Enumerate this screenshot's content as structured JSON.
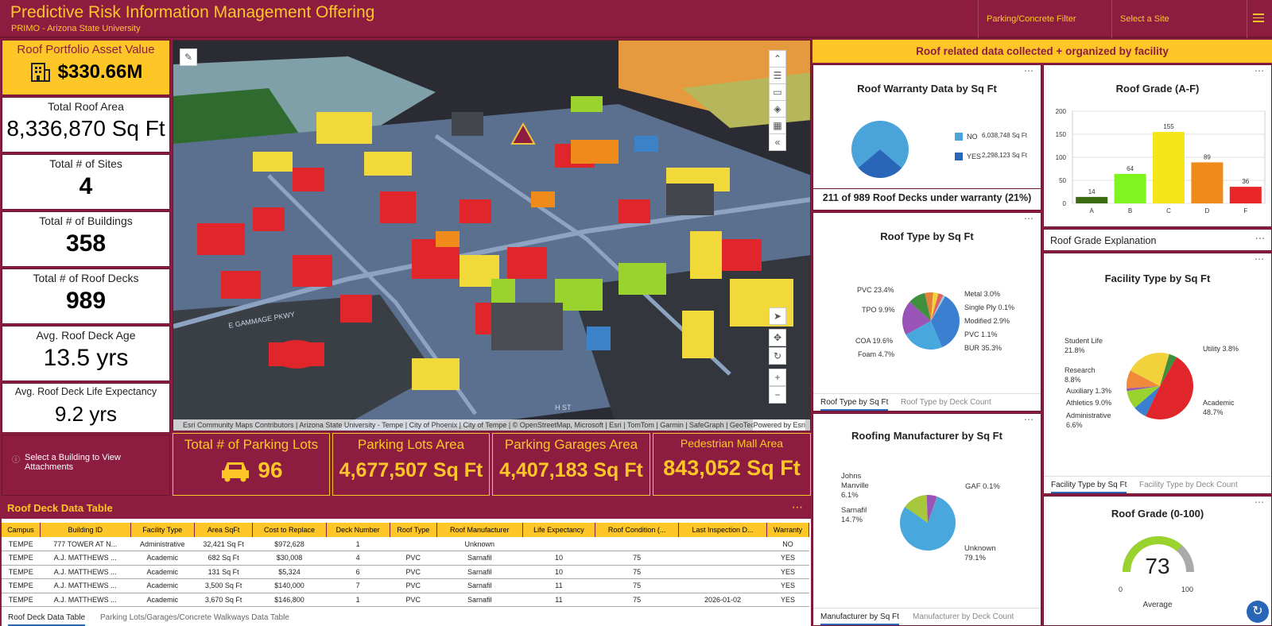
{
  "header": {
    "title": "Predictive Risk Information Management Offering",
    "subtitle": "PRIMO - Arizona State University",
    "buttons": [
      "Parking/Concrete Filter",
      "Select a Site"
    ]
  },
  "kpis": [
    {
      "label": "Roof Portfolio Asset Value",
      "value": "$330.66M"
    },
    {
      "label": "Total Roof Area",
      "value": "8,336,870 Sq Ft"
    },
    {
      "label": "Total # of Sites",
      "value": "4"
    },
    {
      "label": "Total # of Buildings",
      "value": "358"
    },
    {
      "label": "Total # of Roof Decks",
      "value": "989"
    },
    {
      "label": "Avg. Roof Deck Age",
      "value": "13.5 yrs"
    },
    {
      "label": "Avg. Roof Deck Life Expectancy",
      "value": "9.2 yrs"
    }
  ],
  "attachments_hint": "Select a Building to View Attachments",
  "map": {
    "attribution": "Esri Community Maps Contributors | Arizona State University - Tempe | City of Phoenix | City of Tempe | © OpenStreetMap, Microsoft | Esri | TomTom | Garmin | SafeGraph | GeoTechnolo...",
    "powered": "Powered by Esri",
    "street_label": "E GAMMAGE PKWY",
    "street_label2": "H ST"
  },
  "bottom_kpis": [
    {
      "label": "Total # of Parking Lots",
      "value": "96"
    },
    {
      "label": "Parking Lots Area",
      "value": "4,677,507 Sq Ft"
    },
    {
      "label": "Parking Garages Area",
      "value": "4,407,183 Sq Ft"
    },
    {
      "label": "Pedestrian Mall Area",
      "value": "843,052 Sq Ft"
    }
  ],
  "table": {
    "title": "Roof Deck Data Table",
    "columns": [
      "Campus",
      "Building ID",
      "Facility Type",
      "Area SqFt",
      "Cost to Replace",
      "Deck Number",
      "Roof Type",
      "Roof Manufacturer",
      "Life Expectancy",
      "Roof Condition (...",
      "Last Inspection D...",
      "Warranty"
    ],
    "rows": [
      [
        "TEMPE",
        "777 TOWER AT N...",
        "Administrative",
        "32,421 Sq Ft",
        "$972,628",
        "1",
        "",
        "Unknown",
        "",
        "",
        "",
        "NO"
      ],
      [
        "TEMPE",
        "A.J. MATTHEWS ...",
        "Academic",
        "682 Sq Ft",
        "$30,008",
        "4",
        "PVC",
        "Sarnafil",
        "10",
        "75",
        "",
        "YES"
      ],
      [
        "TEMPE",
        "A.J. MATTHEWS ...",
        "Academic",
        "131 Sq Ft",
        "$5,324",
        "6",
        "PVC",
        "Sarnafil",
        "10",
        "75",
        "",
        "YES"
      ],
      [
        "TEMPE",
        "A.J. MATTHEWS ...",
        "Academic",
        "3,500 Sq Ft",
        "$140,000",
        "7",
        "PVC",
        "Sarnafil",
        "11",
        "75",
        "",
        "YES"
      ],
      [
        "TEMPE",
        "A.J. MATTHEWS ...",
        "Academic",
        "3,670 Sq Ft",
        "$146,800",
        "1",
        "PVC",
        "Sarnafil",
        "11",
        "75",
        "2026-01-02",
        "YES"
      ]
    ],
    "tabs": [
      "Roof Deck Data Table",
      "Parking Lots/Garages/Concrete Walkways Data Table"
    ]
  },
  "banner": "Roof related data collected + organized by facility",
  "warranty": {
    "title": "Roof Warranty Data by Sq Ft",
    "legend": [
      {
        "name": "NO",
        "value": "6,038,748 Sq Ft",
        "color": "#4aa3d9"
      },
      {
        "name": "YES",
        "value": "2,298,123 Sq Ft",
        "color": "#2a66b8"
      }
    ],
    "note": "211 of 989 Roof Decks under warranty (21%)"
  },
  "roof_type": {
    "title": "Roof Type by Sq Ft",
    "labels": [
      "PVC 23.4%",
      "TPO 9.9%",
      "COA 19.6%",
      "Foam 4.7%",
      "Metal 3.0%",
      "Single Ply 0.1%",
      "Modified 2.9%",
      "PVC 1.1%",
      "BUR 35.3%"
    ],
    "tabs": [
      "Roof Type by Sq Ft",
      "Roof Type by Deck Count"
    ]
  },
  "manufacturer": {
    "title": "Roofing Manufacturer by Sq Ft",
    "labels": [
      "Johns Manville 6.1%",
      "Sarnafil 14.7%",
      "GAF 0.1%",
      "Unknown 79.1%"
    ],
    "label_lines": {
      "jm1": "Johns",
      "jm2": "Manville",
      "jm3": "6.1%",
      "s1": "Sarnafil",
      "s2": "14.7%",
      "gaf": "GAF 0.1%",
      "u1": "Unknown",
      "u2": "79.1%"
    },
    "tabs": [
      "Manufacturer by Sq Ft",
      "Manufacturer by Deck Count"
    ]
  },
  "grade_af": {
    "title": "Roof Grade (A-F)",
    "yticks": [
      "200",
      "150",
      "100",
      "50",
      "0"
    ]
  },
  "grade_explanation": "Roof Grade Explanation",
  "facility": {
    "title": "Facility Type by Sq Ft",
    "label_lines": {
      "sl1": "Student Life",
      "sl2": "21.8%",
      "r1": "Research",
      "r2": "8.8%",
      "aux": "Auxiliary 1.3%",
      "ath": "Athletics 9.0%",
      "adm1": "Administrative",
      "adm2": "6.6%",
      "util": "Utility 3.8%",
      "aca1": "Academic",
      "aca2": "48.7%"
    },
    "tabs": [
      "Facility Type by Sq Ft",
      "Facility Type by Deck Count"
    ]
  },
  "grade_0_100": {
    "title": "Roof Grade (0-100)",
    "value": "73",
    "min": "0",
    "max": "100",
    "caption": "Average"
  },
  "chart_data": [
    {
      "type": "pie",
      "title": "Roof Warranty Data by Sq Ft",
      "categories": [
        "NO",
        "YES"
      ],
      "values": [
        6038748,
        2298123
      ]
    },
    {
      "type": "pie",
      "title": "Roof Type by Sq Ft",
      "categories": [
        "BUR",
        "PVC",
        "COA",
        "TPO",
        "Foam",
        "Metal",
        "Modified",
        "PVC",
        "Single Ply"
      ],
      "values": [
        35.3,
        23.4,
        19.6,
        9.9,
        4.7,
        3.0,
        2.9,
        1.1,
        0.1
      ]
    },
    {
      "type": "pie",
      "title": "Roofing Manufacturer by Sq Ft",
      "categories": [
        "Unknown",
        "Sarnafil",
        "Johns Manville",
        "GAF"
      ],
      "values": [
        79.1,
        14.7,
        6.1,
        0.1
      ]
    },
    {
      "type": "bar",
      "title": "Roof Grade (A-F)",
      "categories": [
        "A",
        "B",
        "C",
        "D",
        "F"
      ],
      "values": [
        14,
        64,
        155,
        89,
        36
      ],
      "ylim": [
        0,
        200
      ],
      "colors": [
        "#3d6b12",
        "#7ef51f",
        "#f5e61a",
        "#f08a1a",
        "#e8262a"
      ]
    },
    {
      "type": "pie",
      "title": "Facility Type by Sq Ft",
      "categories": [
        "Academic",
        "Administrative",
        "Athletics",
        "Auxiliary",
        "Research",
        "Student Life",
        "Utility"
      ],
      "values": [
        48.7,
        6.6,
        9.0,
        1.3,
        8.8,
        21.8,
        3.8
      ]
    },
    {
      "type": "gauge",
      "title": "Roof Grade (0-100)",
      "value": 73,
      "range": [
        0,
        100
      ]
    }
  ]
}
